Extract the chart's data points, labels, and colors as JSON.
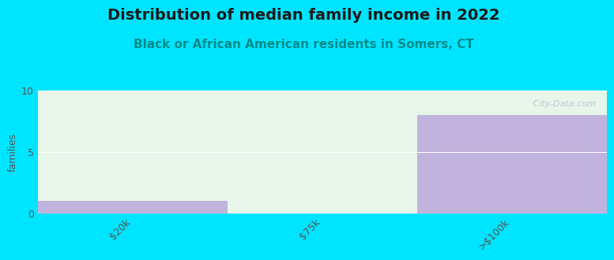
{
  "title": "Distribution of median family income in 2022",
  "subtitle": "Black or African American residents in Somers, CT",
  "categories": [
    "$20k",
    "$75k",
    ">$100k"
  ],
  "values": [
    1,
    0,
    8
  ],
  "bar_color": "#b39ddb",
  "bg_area_color": "#e8f5e9",
  "bg_color": "#00e5ff",
  "plot_bg_color": "#f0faf0",
  "ylabel": "families",
  "ylim": [
    0,
    10
  ],
  "yticks": [
    0,
    5,
    10
  ],
  "title_fontsize": 14,
  "subtitle_fontsize": 11,
  "subtitle_color": "#008b8b",
  "title_color": "#1a1a1a",
  "watermark": " City-Data.com",
  "watermark_color": "#aec6cf",
  "grid_color": "#ffffff",
  "bar_alpha": 0.75,
  "n_segments": 3,
  "segment_edges": [
    0,
    1,
    2,
    3
  ]
}
